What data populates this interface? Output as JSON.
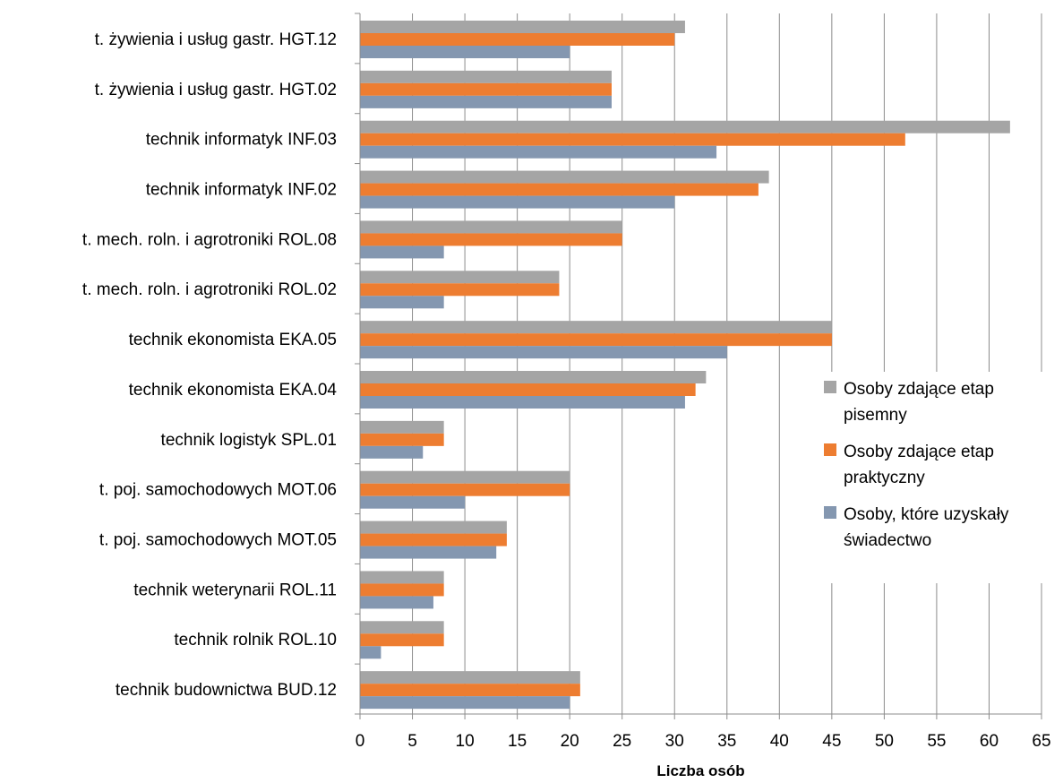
{
  "chart_data": {
    "type": "bar",
    "orientation": "horizontal",
    "categories": [
      "t. żywienia i usług gastr. HGT.12",
      "t. żywienia i usług gastr. HGT.02",
      "technik informatyk INF.03",
      "technik informatyk INF.02",
      "t. mech. roln. i agrotroniki ROL.08",
      "t. mech. roln. i agrotroniki ROL.02",
      "technik ekonomista EKA.05",
      "technik ekonomista EKA.04",
      "technik logistyk SPL.01",
      "t. poj. samochodowych MOT.06",
      "t. poj. samochodowych MOT.05",
      "technik weterynarii ROL.11",
      "technik rolnik ROL.10",
      "technik budownictwa BUD.12"
    ],
    "series": [
      {
        "name": "Osoby zdające etap pisemny",
        "color": "#a5a5a5",
        "values": [
          31,
          24,
          62,
          39,
          25,
          19,
          45,
          33,
          8,
          20,
          14,
          8,
          8,
          21
        ]
      },
      {
        "name": "Osoby zdające etap praktyczny",
        "color": "#ed7d31",
        "values": [
          30,
          24,
          52,
          38,
          25,
          19,
          45,
          32,
          8,
          20,
          14,
          8,
          8,
          21
        ]
      },
      {
        "name": "Osoby, które uzyskały świadectwo",
        "color": "#8497b0",
        "values": [
          20,
          24,
          34,
          30,
          8,
          8,
          35,
          31,
          6,
          10,
          13,
          7,
          2,
          20
        ]
      }
    ],
    "xlabel": "Liczba osób",
    "xlim": [
      0,
      65
    ],
    "xticks": [
      0,
      5,
      10,
      15,
      20,
      25,
      30,
      35,
      40,
      45,
      50,
      55,
      60,
      65
    ],
    "grid": true,
    "legend_position": "right",
    "legend_lines": [
      [
        "Osoby zdające etap",
        "pisemny"
      ],
      [
        "Osoby zdające etap",
        "praktyczny"
      ],
      [
        "Osoby, które uzyskały",
        "świadectwo"
      ]
    ]
  }
}
